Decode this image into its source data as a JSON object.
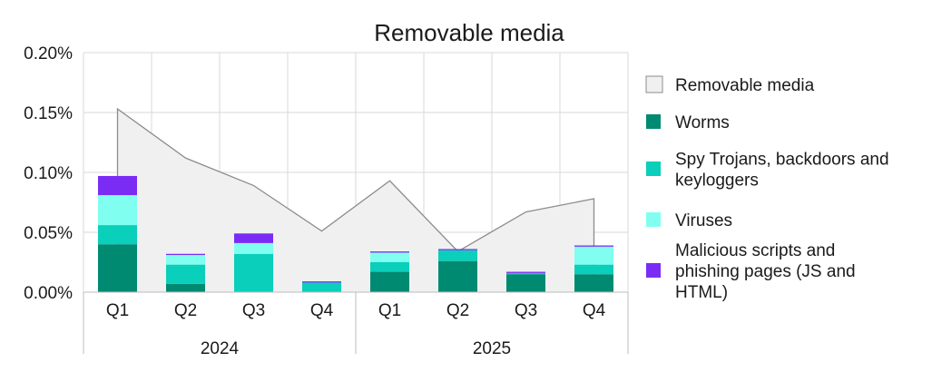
{
  "chart_data": {
    "type": "bar",
    "title": "Removable media",
    "xlabel": "",
    "ylabel": "",
    "y_unit": "%",
    "ylim": [
      0,
      0.2
    ],
    "y_ticks": [
      "0.00%",
      "0.05%",
      "0.10%",
      "0.15%",
      "0.20%"
    ],
    "grid": true,
    "legend_position": "right",
    "stacked": true,
    "categories": [
      "Q1",
      "Q2",
      "Q3",
      "Q4",
      "Q1",
      "Q2",
      "Q3",
      "Q4"
    ],
    "groups": [
      {
        "label": "2024",
        "count": 4
      },
      {
        "label": "2025",
        "count": 4
      }
    ],
    "area_series": {
      "name": "Removable media",
      "values": [
        0.153,
        0.112,
        0.089,
        0.051,
        0.093,
        0.034,
        0.067,
        0.078
      ],
      "color": "#f0f0f0",
      "line_color": "#8c8c8c"
    },
    "series": [
      {
        "name": "Worms",
        "values": [
          0.04,
          0.007,
          0.0,
          0.0,
          0.017,
          0.026,
          0.015,
          0.015
        ],
        "color": "#008a72"
      },
      {
        "name": "Spy Trojans, backdoors and keyloggers",
        "values": [
          0.016,
          0.016,
          0.032,
          0.008,
          0.008,
          0.009,
          0.001,
          0.008
        ],
        "color": "#0acfba"
      },
      {
        "name": "Viruses",
        "values": [
          0.025,
          0.008,
          0.009,
          0.0,
          0.008,
          0.0,
          0.0,
          0.015
        ],
        "color": "#80fff0"
      },
      {
        "name": "Malicious scripts and phishing pages (JS and HTML)",
        "values": [
          0.016,
          0.001,
          0.008,
          0.001,
          0.001,
          0.001,
          0.001,
          0.001
        ],
        "color": "#7a2cf5"
      }
    ],
    "legend": [
      {
        "lines": [
          "Removable media"
        ]
      },
      {
        "lines": [
          "Worms"
        ]
      },
      {
        "lines": [
          "Spy Trojans, backdoors and",
          "keyloggers"
        ]
      },
      {
        "lines": [
          "Viruses"
        ]
      },
      {
        "lines": [
          "Malicious scripts and",
          "phishing pages (JS and",
          "HTML)"
        ]
      }
    ]
  }
}
